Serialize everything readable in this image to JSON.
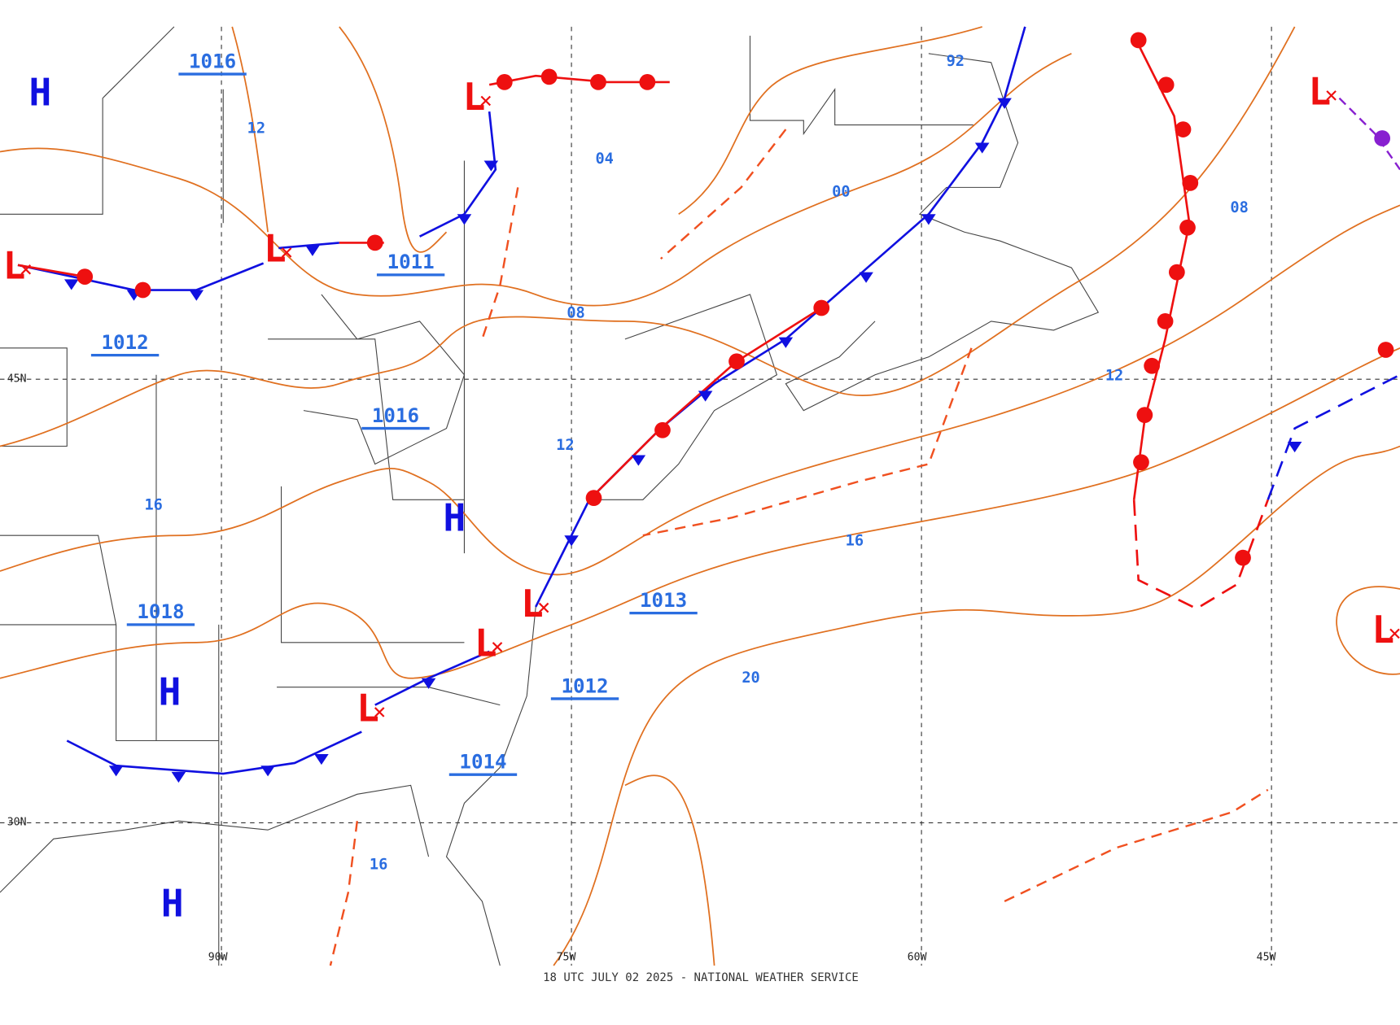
{
  "map": {
    "footer": "18 UTC JULY 02 2025 - NATIONAL WEATHER SERVICE",
    "grid_labels": [
      "45N",
      "30N",
      "90W",
      "75W",
      "60W",
      "45W"
    ],
    "isobar_labels": [
      "1016",
      "1011",
      "1012",
      "1016",
      "1018",
      "1013",
      "1012",
      "1014"
    ],
    "contour_labels": [
      "12",
      "04",
      "08",
      "00",
      "92",
      "08",
      "12",
      "12",
      "16",
      "16",
      "20",
      "16"
    ],
    "highs": [
      "H",
      "H",
      "H",
      "H"
    ],
    "lows": [
      "L",
      "L",
      "L",
      "L",
      "L",
      "L",
      "L",
      "L"
    ]
  }
}
